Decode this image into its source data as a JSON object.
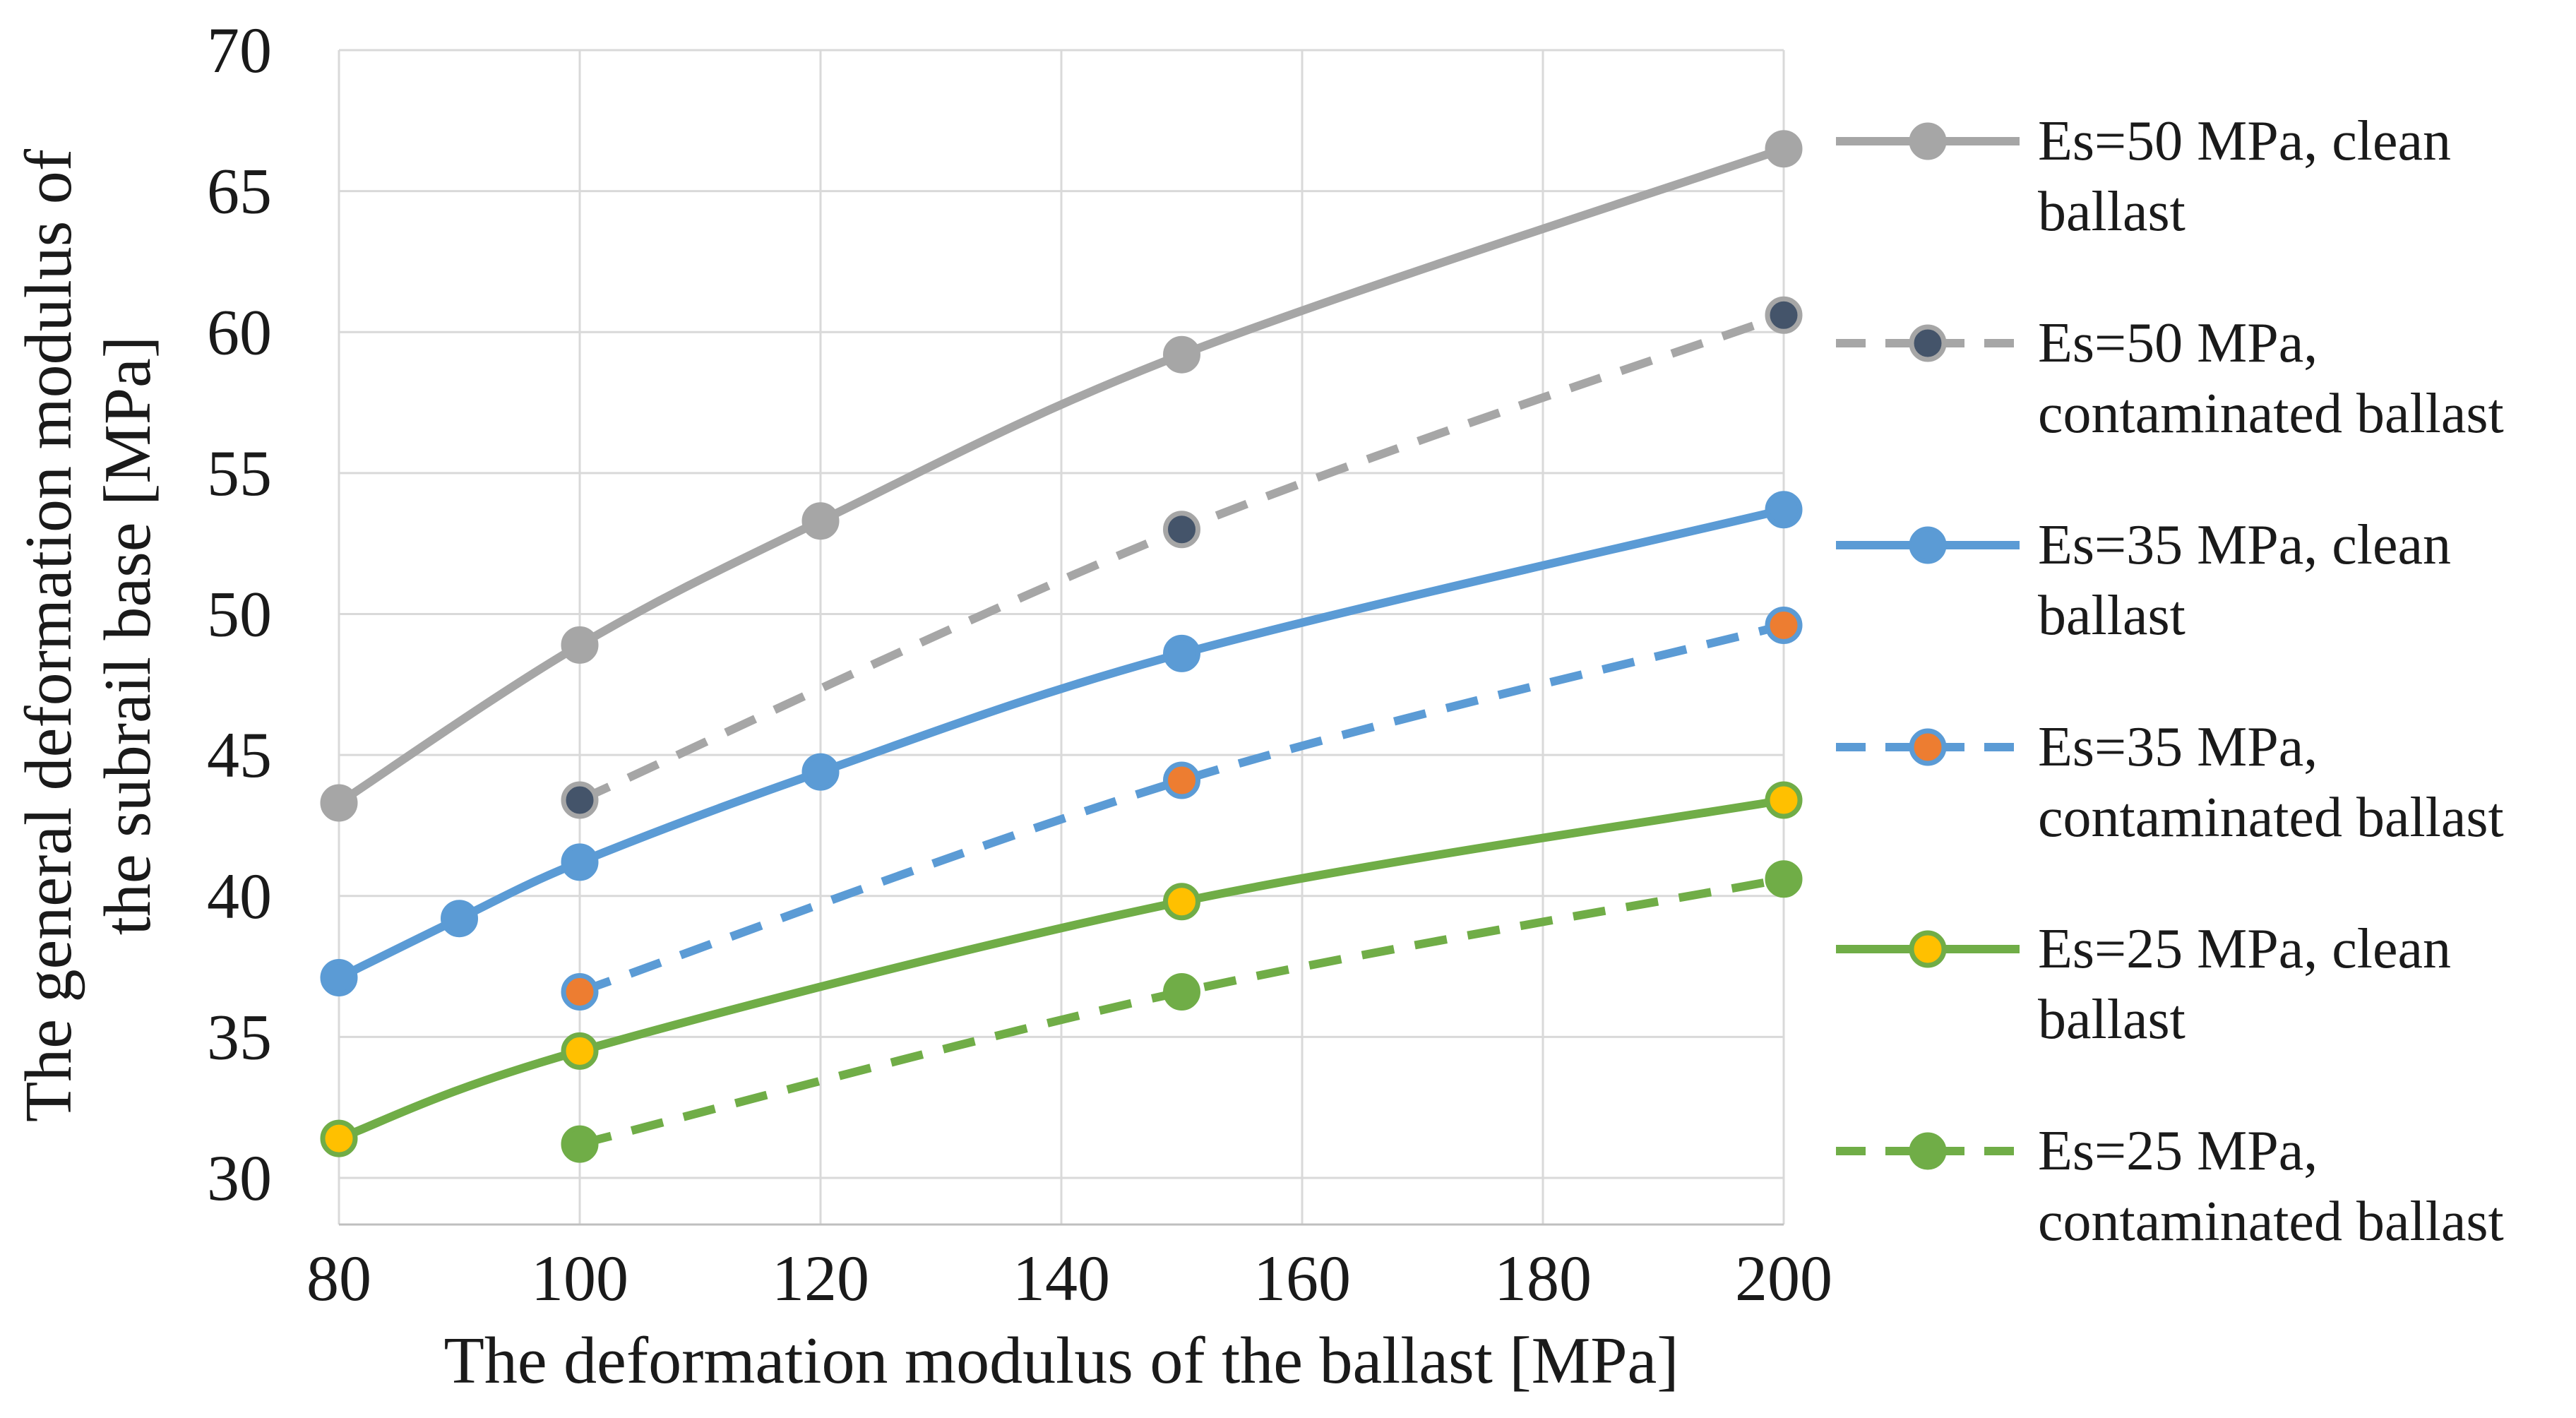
{
  "chart_data": {
    "type": "line",
    "title": "",
    "xlabel": "The deformation modulus of the ballast [MPa]",
    "ylabel": "The general deformation modulus of the subrail base [MPa]",
    "ylabel_lines": [
      "The general deformation modulus of",
      "the subrail base [MPa]"
    ],
    "xlim": [
      80,
      200
    ],
    "ylim": [
      30,
      70
    ],
    "x_ticks": [
      80,
      100,
      120,
      140,
      160,
      180,
      200
    ],
    "y_ticks": [
      30,
      35,
      40,
      45,
      50,
      55,
      60,
      65,
      70
    ],
    "grid": true,
    "grid_color": "#d9d9d9",
    "axis_line_color": "#bfbfbf",
    "text_color": "#1a1a1a",
    "legend_position": "right",
    "series": [
      {
        "name": "Es=50 MPa, clean ballast",
        "line_color": "#a6a6a6",
        "dash": false,
        "marker_fill": "#a6a6a6",
        "marker_stroke": "#a6a6a6",
        "points": [
          [
            80,
            43.3
          ],
          [
            100,
            48.9
          ],
          [
            120,
            53.3
          ],
          [
            150,
            59.2
          ],
          [
            200,
            66.5
          ]
        ]
      },
      {
        "name": "Es=50 MPa, contaminated ballast",
        "line_color": "#a6a6a6",
        "dash": true,
        "marker_fill": "#44546a",
        "marker_stroke": "#a6a6a6",
        "points": [
          [
            100,
            43.4
          ],
          [
            150,
            53.0
          ],
          [
            200,
            60.6
          ]
        ]
      },
      {
        "name": "Es=35 MPa, clean ballast",
        "line_color": "#5b9bd5",
        "dash": false,
        "marker_fill": "#5b9bd5",
        "marker_stroke": "#5b9bd5",
        "points": [
          [
            80,
            37.1
          ],
          [
            90,
            39.2
          ],
          [
            100,
            41.2
          ],
          [
            120,
            44.4
          ],
          [
            150,
            48.6
          ],
          [
            200,
            53.7
          ]
        ]
      },
      {
        "name": "Es=35 MPa, contaminated ballast",
        "line_color": "#5b9bd5",
        "dash": true,
        "marker_fill": "#ed7d31",
        "marker_stroke": "#5b9bd5",
        "points": [
          [
            100,
            36.6
          ],
          [
            150,
            44.1
          ],
          [
            200,
            49.6
          ]
        ]
      },
      {
        "name": "Es=25 MPa, clean ballast",
        "line_color": "#70ad47",
        "dash": false,
        "marker_fill": "#ffc000",
        "marker_stroke": "#70ad47",
        "points": [
          [
            80,
            31.4
          ],
          [
            100,
            34.5
          ],
          [
            150,
            39.8
          ],
          [
            200,
            43.4
          ]
        ]
      },
      {
        "name": "Es=25 MPa, contaminated ballast",
        "line_color": "#70ad47",
        "dash": true,
        "marker_fill": "#70ad47",
        "marker_stroke": "#70ad47",
        "points": [
          [
            100,
            31.2
          ],
          [
            150,
            36.6
          ],
          [
            200,
            40.6
          ]
        ]
      }
    ]
  }
}
